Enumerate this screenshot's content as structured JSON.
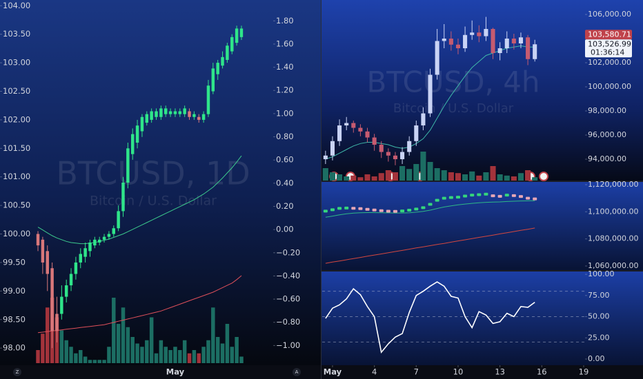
{
  "chart_data": [
    {
      "type": "candlestick",
      "title": "BTCUSD, 1D",
      "subtitle": "Bitcoin / U.S. Dollar",
      "categories": [
        null,
        null,
        null,
        null,
        null,
        null,
        null,
        null,
        null,
        null,
        null,
        null,
        null,
        null,
        null,
        null,
        null,
        null,
        null,
        null,
        null,
        null,
        null,
        null,
        null,
        null,
        null,
        null,
        null,
        "May",
        null,
        null,
        null,
        null,
        null,
        null,
        null,
        null,
        null,
        null,
        null,
        null,
        null,
        null
      ],
      "open": [
        100.0,
        99.9,
        99.7,
        99.4,
        98.6,
        98.6,
        98.9,
        99.1,
        99.3,
        99.5,
        99.6,
        99.7,
        99.8,
        99.85,
        99.9,
        99.95,
        100.0,
        100.1,
        100.4,
        100.9,
        101.4,
        101.6,
        101.8,
        101.95,
        102.0,
        102.05,
        102.05,
        102.1,
        102.1,
        102.1,
        102.1,
        102.1,
        102.15,
        102.05,
        102.05,
        102.0,
        102.1,
        102.5,
        102.8,
        102.95,
        103.05,
        103.2,
        103.35,
        103.45
      ],
      "high": [
        100.05,
        99.95,
        99.8,
        99.5,
        98.9,
        99.1,
        99.2,
        99.4,
        99.6,
        99.75,
        99.85,
        99.9,
        99.95,
        99.95,
        100.0,
        100.05,
        100.15,
        100.5,
        101.0,
        101.6,
        101.85,
        102.0,
        102.1,
        102.15,
        102.2,
        102.2,
        102.25,
        102.25,
        102.2,
        102.2,
        102.2,
        102.25,
        102.2,
        102.15,
        102.1,
        102.15,
        102.7,
        103.0,
        103.05,
        103.2,
        103.35,
        103.5,
        103.65,
        103.65
      ],
      "low": [
        99.7,
        99.3,
        99.0,
        98.0,
        98.1,
        98.5,
        98.8,
        99.0,
        99.2,
        99.4,
        99.5,
        99.6,
        99.75,
        99.8,
        99.85,
        99.9,
        99.95,
        100.05,
        100.3,
        100.8,
        101.3,
        101.5,
        101.7,
        101.9,
        101.95,
        102.0,
        102.0,
        102.05,
        102.05,
        102.05,
        102.05,
        102.05,
        102.0,
        102.0,
        101.95,
        101.95,
        102.05,
        102.45,
        102.7,
        102.9,
        103.0,
        103.15,
        103.3,
        103.4
      ],
      "close": [
        99.8,
        99.5,
        99.3,
        98.3,
        98.3,
        98.9,
        99.1,
        99.3,
        99.5,
        99.65,
        99.75,
        99.85,
        99.9,
        99.9,
        99.95,
        100.0,
        100.1,
        100.4,
        100.9,
        101.5,
        101.75,
        101.9,
        102.05,
        102.1,
        102.15,
        102.15,
        102.2,
        102.2,
        102.15,
        102.15,
        102.15,
        102.2,
        102.05,
        102.1,
        102.0,
        102.1,
        102.6,
        102.9,
        103.0,
        103.1,
        103.3,
        103.45,
        103.6,
        103.6
      ],
      "volume": [
        20,
        45,
        85,
        100,
        70,
        50,
        35,
        25,
        15,
        20,
        10,
        5,
        5,
        5,
        5,
        25,
        100,
        60,
        85,
        55,
        40,
        30,
        25,
        35,
        70,
        15,
        35,
        25,
        20,
        25,
        20,
        35,
        15,
        20,
        15,
        25,
        35,
        85,
        40,
        30,
        60,
        25,
        40,
        10
      ],
      "up_color": "#2fe58a",
      "down_color": "#d8777a",
      "volume_up_color": "#1c6e63",
      "volume_down_color": "#a3333b",
      "series": [
        {
          "color": "#3cc98c",
          "values": [
            100.12,
            100.07,
            100.02,
            99.97,
            99.93,
            99.9,
            99.87,
            99.85,
            99.84,
            99.83,
            99.83,
            99.84,
            99.85,
            99.87,
            99.89,
            99.91,
            99.94,
            99.97,
            100.0,
            100.04,
            100.08,
            100.12,
            100.16,
            100.2,
            100.24,
            100.28,
            100.32,
            100.36,
            100.4,
            100.44,
            100.48,
            100.52,
            100.56,
            100.6,
            100.65,
            100.7,
            100.76,
            100.82,
            100.9,
            100.98,
            101.07,
            101.16,
            101.26,
            101.37
          ]
        },
        {
          "color": "#e0505a",
          "values": [
            98.27,
            98.28,
            98.29,
            98.3,
            98.31,
            98.32,
            98.33,
            98.34,
            98.35,
            98.36,
            98.37,
            98.38,
            98.39,
            98.4,
            98.41,
            98.43,
            98.45,
            98.47,
            98.49,
            98.51,
            98.53,
            98.55,
            98.57,
            98.59,
            98.61,
            98.63,
            98.65,
            98.68,
            98.71,
            98.74,
            98.77,
            98.8,
            98.83,
            98.86,
            98.89,
            98.92,
            98.95,
            98.98,
            99.02,
            99.06,
            99.1,
            99.14,
            99.2,
            99.27
          ]
        }
      ],
      "ylim": [
        97.7,
        104.1
      ],
      "yticks": [
        {
          "value": 98,
          "label": "98.00"
        },
        {
          "value": 98.5,
          "label": "98.50"
        },
        {
          "value": 99,
          "label": "99.00"
        },
        {
          "value": 99.5,
          "label": "99.50"
        },
        {
          "value": 100,
          "label": "100.00"
        },
        {
          "value": 100.5,
          "label": "100.50"
        },
        {
          "value": 101,
          "label": "101.00"
        },
        {
          "value": 101.5,
          "label": "101.50"
        },
        {
          "value": 102,
          "label": "102.00"
        },
        {
          "value": 102.5,
          "label": "102.50"
        },
        {
          "value": 103,
          "label": "103.00"
        },
        {
          "value": 103.5,
          "label": "103.50"
        },
        {
          "value": 104,
          "label": "104.00"
        }
      ],
      "y2lim": [
        -1.17,
        1.98
      ],
      "y2ticks": [
        {
          "value": 1.8,
          "label": "1.80"
        },
        {
          "value": 1.6,
          "label": "1.60"
        },
        {
          "value": 1.4,
          "label": "1.40"
        },
        {
          "value": 1.2,
          "label": "1.20"
        },
        {
          "value": 1,
          "label": "1.00"
        },
        {
          "value": 0.8,
          "label": "0.80"
        },
        {
          "value": 0.6,
          "label": "0.60"
        },
        {
          "value": 0.4,
          "label": "0.40"
        },
        {
          "value": 0.2,
          "label": "0.20"
        },
        {
          "value": 0,
          "label": "0.00"
        },
        {
          "value": -0.2,
          "label": "−0.20"
        },
        {
          "value": -0.4,
          "label": "−0.40"
        },
        {
          "value": -0.6,
          "label": "−0.60"
        },
        {
          "value": -0.8,
          "label": "−0.80"
        },
        {
          "value": -1,
          "label": "−1.00"
        }
      ],
      "icons": [
        "Z",
        "A"
      ]
    },
    {
      "type": "candlestick",
      "title": "BTCUSD, 4h",
      "subtitle": "Bitcoin / U.S. Dollar",
      "x": [
        0.5,
        1,
        1.5,
        2,
        2.5,
        3,
        3.5,
        4,
        4.5,
        5,
        5.5,
        6,
        6.5,
        7,
        7.5,
        8,
        8.5,
        9,
        9.5,
        10,
        10.5,
        11,
        11.5,
        12,
        12.5,
        13,
        13.5,
        14,
        14.5,
        15,
        15.5
      ],
      "xlim": [
        0.26,
        19.1
      ],
      "open": [
        94000,
        94300,
        95500,
        96800,
        97000,
        96600,
        96300,
        95800,
        95200,
        94600,
        94300,
        94000,
        94600,
        95500,
        96800,
        97800,
        101000,
        103800,
        104000,
        103500,
        103200,
        104300,
        104500,
        104200,
        104800,
        102800,
        103200,
        104000,
        103600,
        104100,
        102300
      ],
      "high": [
        94700,
        95900,
        97300,
        97500,
        97200,
        96900,
        96600,
        96100,
        95500,
        94900,
        94600,
        95000,
        95900,
        97200,
        98300,
        101500,
        104800,
        105200,
        104600,
        104000,
        105000,
        105500,
        105100,
        105800,
        104900,
        103700,
        104600,
        104400,
        104500,
        104300,
        103900
      ],
      "low": [
        93600,
        93900,
        95100,
        96400,
        96200,
        95900,
        95400,
        94700,
        94100,
        93800,
        93500,
        93600,
        94300,
        95100,
        96400,
        97500,
        100600,
        103200,
        103000,
        102700,
        102900,
        103900,
        103700,
        103800,
        102300,
        102200,
        102800,
        103100,
        103200,
        101800,
        102100
      ],
      "close": [
        94300,
        95500,
        96800,
        97000,
        96600,
        96300,
        95800,
        95200,
        94600,
        94300,
        94000,
        94600,
        95500,
        96800,
        97800,
        101000,
        103800,
        104000,
        103500,
        103200,
        104300,
        104500,
        104200,
        104800,
        102800,
        103200,
        104000,
        103600,
        104100,
        102300,
        103527
      ],
      "volume": [
        30,
        20,
        15,
        10,
        12,
        8,
        15,
        10,
        18,
        25,
        20,
        35,
        28,
        40,
        70,
        45,
        30,
        25,
        20,
        18,
        15,
        22,
        12,
        20,
        35,
        15,
        12,
        10,
        18,
        25,
        8
      ],
      "up_color": "#c9d3f5",
      "down_color": "#c65b70",
      "volume_up_color": "#1c6e63",
      "volume_down_color": "#a3333b",
      "series": [
        {
          "color": "#3fb8a9",
          "values": [
            94000,
            94200,
            94500,
            94800,
            95100,
            95300,
            95400,
            95400,
            95300,
            95200,
            95000,
            94900,
            95000,
            95300,
            95700,
            96400,
            97400,
            98400,
            99300,
            100100,
            100900,
            101600,
            102100,
            102600,
            102800,
            103000,
            103200,
            103300,
            103400,
            103300,
            103300
          ]
        }
      ],
      "ylim": [
        92230,
        107200
      ],
      "yticks": [
        {
          "value": 94000,
          "label": "94,000.00"
        },
        {
          "value": 96000,
          "label": "96,000.00"
        },
        {
          "value": 98000,
          "label": "98,000.00"
        },
        {
          "value": 100000,
          "label": "100,000.00"
        },
        {
          "value": 102000,
          "label": "102,000.00"
        },
        {
          "value": 106000,
          "label": "106,000.00"
        }
      ],
      "price_tags": [
        {
          "value": 103580.71,
          "label": "103,580.71"
        },
        {
          "value": 103526.99,
          "label": "103,526.99"
        }
      ],
      "countdown": "01:36:14"
    },
    {
      "type": "dots",
      "x": [
        0.5,
        1,
        1.5,
        2,
        2.5,
        3,
        3.5,
        4,
        4.5,
        5,
        5.5,
        6,
        6.5,
        7,
        7.5,
        8,
        8.5,
        9,
        9.5,
        10,
        10.5,
        11,
        11.5,
        12,
        12.5,
        13,
        13.5,
        14,
        14.5,
        15,
        15.5
      ],
      "xlim": [
        0.26,
        19.1
      ],
      "values": [
        1100500,
        1101500,
        1102500,
        1102800,
        1102600,
        1102300,
        1101800,
        1101300,
        1100800,
        1100400,
        1100300,
        1100600,
        1101200,
        1102000,
        1103000,
        1105500,
        1108500,
        1110000,
        1110500,
        1110800,
        1111600,
        1112300,
        1112600,
        1113000,
        1111800,
        1111400,
        1112300,
        1111900,
        1111300,
        1110000,
        1109500
      ],
      "up_color": "#35d67c",
      "down_color": "#e6a6b6",
      "series": [
        {
          "color": "#2eb886",
          "values": [
            1096000,
            1096800,
            1097800,
            1098500,
            1099000,
            1099300,
            1099400,
            1099400,
            1099300,
            1099200,
            1099100,
            1099100,
            1099300,
            1099700,
            1100300,
            1101200,
            1102400,
            1103500,
            1104400,
            1105100,
            1105700,
            1106200,
            1106600,
            1107000,
            1107200,
            1107300,
            1107600,
            1107800,
            1108000,
            1108100,
            1108200
          ]
        },
        {
          "color": "#d4473f",
          "values": [
            1062000,
            1062900,
            1063700,
            1064600,
            1065500,
            1066300,
            1067200,
            1068100,
            1068900,
            1069800,
            1070700,
            1071500,
            1072400,
            1073300,
            1074100,
            1075000,
            1075900,
            1076700,
            1077600,
            1078500,
            1079300,
            1080200,
            1081100,
            1081900,
            1082800,
            1083700,
            1084500,
            1085400,
            1086300,
            1087100,
            1088000
          ]
        }
      ],
      "ylim": [
        1056950,
        1122030
      ],
      "yticks": [
        {
          "value": 1060000,
          "label": "1,060,000.00"
        },
        {
          "value": 1080000,
          "label": "1,080,000.00"
        },
        {
          "value": 1100000,
          "label": "1,100,000.00"
        },
        {
          "value": 1120000,
          "label": "1,120,000.00"
        }
      ]
    },
    {
      "type": "line",
      "x": [
        0.5,
        1,
        1.5,
        2,
        2.5,
        3,
        3.5,
        4,
        4.5,
        5,
        5.5,
        6,
        6.5,
        7,
        7.5,
        8,
        8.5,
        9,
        9.5,
        10,
        10.5,
        11,
        11.5,
        12,
        12.5,
        13,
        13.5,
        14,
        14.5,
        15,
        15.5
      ],
      "xlim": [
        0.26,
        19.1
      ],
      "series": [
        {
          "color": "#ffffff",
          "values": [
            48,
            60,
            64,
            71,
            83,
            76,
            62,
            50,
            8,
            18,
            26,
            30,
            55,
            75,
            80,
            86,
            91,
            86,
            74,
            72,
            50,
            37,
            56,
            52,
            42,
            44,
            54,
            50,
            62,
            61,
            67
          ]
        }
      ],
      "levels": [
        80,
        50,
        20
      ],
      "ylim": [
        -7.3,
        103.3
      ],
      "yticks": [
        {
          "value": 0,
          "label": "0.00"
        },
        {
          "value": 25,
          "label": "25.00"
        },
        {
          "value": 50,
          "label": "50.00"
        },
        {
          "value": 75,
          "label": "75.00"
        },
        {
          "value": 100,
          "label": "100.00"
        }
      ],
      "xticks": [
        {
          "value": 1,
          "label": "May"
        },
        4,
        7,
        10,
        13,
        16,
        19
      ]
    }
  ]
}
